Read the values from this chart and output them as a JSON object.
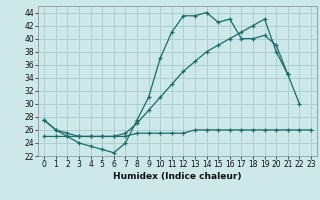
{
  "title": "",
  "xlabel": "Humidex (Indice chaleur)",
  "background_color": "#cce8e8",
  "grid_color": "#aacccc",
  "line_color": "#1a6b6b",
  "xlim": [
    -0.5,
    23.5
  ],
  "ylim": [
    22,
    45
  ],
  "yticks": [
    22,
    24,
    26,
    28,
    30,
    32,
    34,
    36,
    38,
    40,
    42,
    44
  ],
  "xticks": [
    0,
    1,
    2,
    3,
    4,
    5,
    6,
    7,
    8,
    9,
    10,
    11,
    12,
    13,
    14,
    15,
    16,
    17,
    18,
    19,
    20,
    21,
    22,
    23
  ],
  "line1_x": [
    0,
    1,
    2,
    3,
    4,
    5,
    6,
    7,
    8,
    9,
    10,
    11,
    12,
    13,
    14,
    15,
    16,
    17,
    18,
    19,
    20,
    21,
    22
  ],
  "line1_y": [
    27.5,
    26,
    25,
    24,
    23.5,
    23,
    22.5,
    24,
    27.5,
    31,
    37,
    41,
    43.5,
    43.5,
    44,
    42.5,
    43,
    40,
    40,
    40.5,
    39,
    34.5,
    30
  ],
  "line2_x": [
    0,
    1,
    2,
    3,
    4,
    5,
    6,
    7,
    8,
    9,
    10,
    11,
    12,
    13,
    14,
    15,
    16,
    17,
    18,
    19,
    20,
    21
  ],
  "line2_y": [
    27.5,
    26,
    25.5,
    25,
    25,
    25,
    25,
    25.5,
    27,
    29,
    31,
    33,
    35,
    36.5,
    38,
    39,
    40,
    41,
    42,
    43,
    38,
    34.5
  ],
  "line3_x": [
    0,
    1,
    2,
    3,
    4,
    5,
    6,
    7,
    8,
    9,
    10,
    11,
    12,
    13,
    14,
    15,
    16,
    17,
    18,
    19,
    20,
    21,
    22,
    23
  ],
  "line3_y": [
    25.0,
    25.0,
    25.0,
    25.0,
    25.0,
    25.0,
    25.0,
    25.0,
    25.5,
    25.5,
    25.5,
    25.5,
    25.5,
    26.0,
    26.0,
    26.0,
    26.0,
    26.0,
    26.0,
    26.0,
    26.0,
    26.0,
    26.0,
    26.0
  ],
  "tick_fontsize": 5.5,
  "xlabel_fontsize": 6.5
}
